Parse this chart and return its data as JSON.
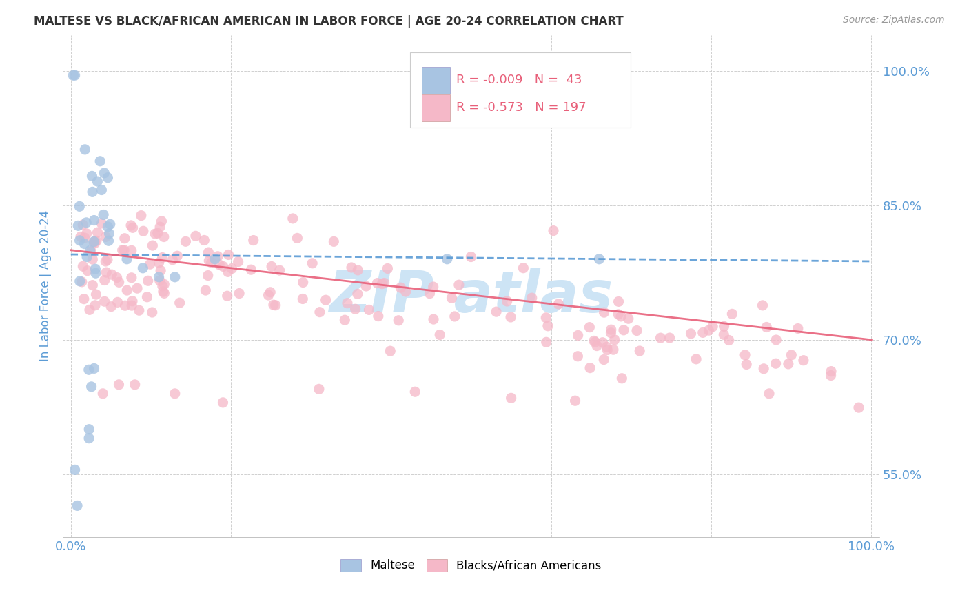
{
  "title": "MALTESE VS BLACK/AFRICAN AMERICAN IN LABOR FORCE | AGE 20-24 CORRELATION CHART",
  "source": "Source: ZipAtlas.com",
  "ylabel": "In Labor Force | Age 20-24",
  "xlim": [
    -0.01,
    1.01
  ],
  "ylim": [
    0.48,
    1.04
  ],
  "ytick_vals": [
    0.55,
    0.7,
    0.85,
    1.0
  ],
  "ytick_labels": [
    "55.0%",
    "70.0%",
    "85.0%",
    "100.0%"
  ],
  "xtick_vals": [
    0.0,
    0.2,
    0.4,
    0.6,
    0.8,
    1.0
  ],
  "xtick_labels": [
    "0.0%",
    "",
    "",
    "",
    "",
    "100.0%"
  ],
  "maltese_R": -0.009,
  "maltese_N": 43,
  "pink_R": -0.573,
  "pink_N": 197,
  "blue_dot_color": "#a8c4e2",
  "pink_dot_color": "#f5b8c8",
  "blue_line_color": "#5b9bd5",
  "pink_line_color": "#e8607a",
  "axis_tick_color": "#5b9bd5",
  "ylabel_color": "#5b9bd5",
  "grid_color": "#d0d0d0",
  "background_color": "#ffffff",
  "watermark_color": "#cde4f5",
  "title_color": "#333333",
  "source_color": "#999999",
  "legend_r_color": "#e8607a",
  "legend_n_color": "#333333"
}
